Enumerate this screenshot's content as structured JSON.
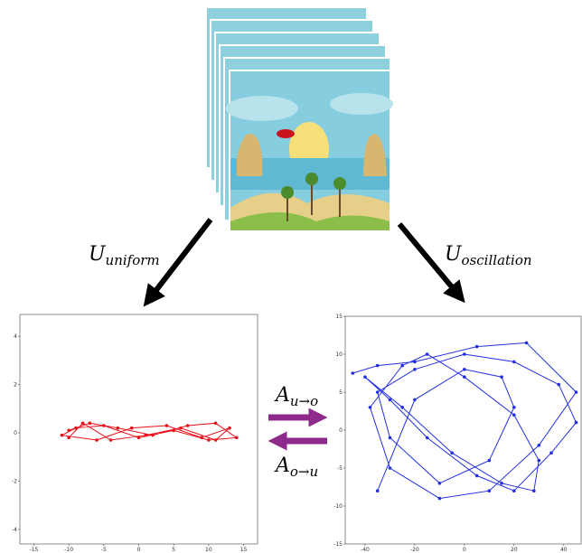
{
  "labels": {
    "left": {
      "base": "U",
      "sub": "uniform"
    },
    "right": {
      "base": "U",
      "sub": "oscillation"
    },
    "forward": {
      "base": "A",
      "sub": "u→o"
    },
    "backward": {
      "base": "A",
      "sub": "o→u"
    }
  },
  "plots": [
    {
      "type": "line",
      "color": "#e8101a",
      "xlim": [
        -17,
        17
      ],
      "ylim": [
        -4.6,
        4.9
      ],
      "xticks": [
        -15,
        -10,
        -5,
        0,
        5,
        10,
        15
      ],
      "yticks": [
        -4,
        -2,
        0,
        2,
        4
      ],
      "x": [
        -10,
        -7,
        -3,
        2,
        7,
        11,
        14,
        10,
        5,
        0,
        -5,
        -9,
        -11,
        -6,
        -1,
        4,
        9,
        13,
        11,
        6,
        1,
        -4,
        -8,
        -10
      ],
      "y": [
        0.1,
        0.4,
        0.2,
        -0.1,
        0.3,
        0.4,
        -0.2,
        -0.3,
        0.1,
        -0.2,
        0.3,
        0.2,
        -0.1,
        -0.3,
        0.2,
        0.3,
        -0.2,
        0.2,
        -0.3,
        0.2,
        -0.1,
        -0.3,
        0.4,
        -0.2
      ]
    },
    {
      "type": "line",
      "color": "#2430e0",
      "xlim": [
        -48,
        47
      ],
      "ylim": [
        -15,
        15
      ],
      "xticks": [
        -40,
        -20,
        0,
        20,
        40
      ],
      "yticks": [
        -15,
        -10,
        -5,
        0,
        5,
        10,
        15
      ],
      "x": [
        -45,
        -35,
        -20,
        5,
        25,
        45,
        30,
        10,
        -10,
        -30,
        -38,
        -25,
        -15,
        0,
        20,
        30,
        28,
        15,
        -5,
        -25,
        -40,
        -30,
        -15,
        5,
        20,
        35,
        45,
        38,
        20,
        0,
        -20,
        -35,
        -30,
        -10,
        10,
        20,
        15,
        0,
        -20,
        -35
      ],
      "y": [
        7.5,
        8.5,
        9,
        11,
        11.5,
        5,
        -2,
        -8,
        -9,
        -5,
        3,
        8.5,
        10,
        7,
        2,
        -4,
        -8,
        -7,
        -3,
        3,
        7,
        4,
        -1,
        -6,
        -8,
        -3,
        1,
        6,
        9,
        10,
        8,
        5,
        -1,
        -7,
        -4,
        3,
        7,
        8,
        4,
        -8
      ]
    }
  ]
}
